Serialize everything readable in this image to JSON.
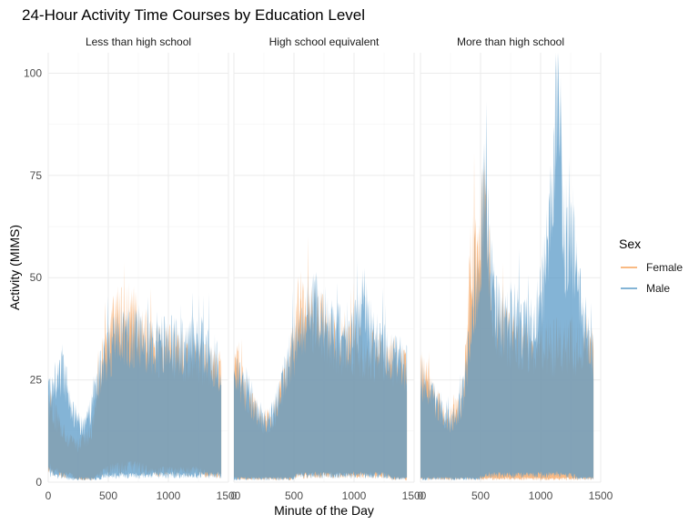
{
  "chart_data": {
    "type": "area",
    "title": "24-Hour Activity Time Courses by Education Level",
    "xlabel": "Minute of the Day",
    "ylabel": "Activity (MIMS)",
    "xlim": [
      0,
      1500
    ],
    "ylim": [
      0,
      105
    ],
    "x_ticks": [
      0,
      500,
      1000,
      1500
    ],
    "y_ticks": [
      0,
      25,
      50,
      75,
      100
    ],
    "grid": true,
    "legend": {
      "title": "Sex",
      "position": "right",
      "entries": [
        {
          "label": "Female",
          "color": "#f7a35c"
        },
        {
          "label": "Male",
          "color": "#5b9bc8"
        }
      ]
    },
    "panels": [
      {
        "label": "Less than high school",
        "series": [
          {
            "name": "Female",
            "x": [
              0,
              60,
              120,
              180,
              240,
              300,
              360,
              420,
              480,
              540,
              600,
              660,
              720,
              780,
              840,
              900,
              960,
              1020,
              1080,
              1140,
              1200,
              1260,
              1320,
              1380,
              1440
            ],
            "upper": [
              20,
              16,
              13,
              10,
              9,
              10,
              12,
              25,
              33,
              38,
              40,
              42,
              40,
              36,
              33,
              32,
              32,
              32,
              31,
              31,
              31,
              30,
              30,
              28,
              26
            ],
            "lower": [
              4,
              3,
              2,
              2,
              1,
              1,
              1,
              2,
              3,
              4,
              4,
              4,
              4,
              4,
              3,
              3,
              3,
              3,
              3,
              3,
              3,
              3,
              2,
              2,
              2
            ]
          },
          {
            "name": "Male",
            "x": [
              0,
              60,
              120,
              180,
              240,
              300,
              360,
              420,
              480,
              540,
              600,
              660,
              720,
              780,
              840,
              900,
              960,
              1020,
              1080,
              1140,
              1200,
              1260,
              1320,
              1380,
              1440
            ],
            "upper": [
              22,
              24,
              27,
              20,
              15,
              13,
              18,
              26,
              31,
              34,
              36,
              35,
              36,
              35,
              33,
              34,
              33,
              34,
              33,
              33,
              35,
              34,
              32,
              30,
              27
            ],
            "lower": [
              3,
              2,
              2,
              1,
              1,
              1,
              1,
              1,
              2,
              2,
              2,
              2,
              2,
              2,
              2,
              2,
              2,
              2,
              2,
              2,
              2,
              2,
              2,
              2,
              2
            ]
          }
        ]
      },
      {
        "label": "High school equivalent",
        "series": [
          {
            "name": "Female",
            "x": [
              0,
              60,
              120,
              180,
              240,
              300,
              360,
              420,
              480,
              540,
              600,
              660,
              720,
              780,
              840,
              900,
              960,
              1020,
              1080,
              1140,
              1200,
              1260,
              1320,
              1380,
              1440
            ],
            "upper": [
              30,
              25,
              20,
              17,
              15,
              15,
              18,
              25,
              32,
              43,
              38,
              40,
              39,
              36,
              34,
              33,
              33,
              32,
              32,
              31,
              31,
              30,
              30,
              29,
              27
            ],
            "lower": [
              1,
              1,
              1,
              1,
              1,
              1,
              1,
              1,
              1,
              2,
              2,
              2,
              2,
              2,
              2,
              2,
              2,
              2,
              2,
              2,
              2,
              2,
              1,
              1,
              1
            ]
          },
          {
            "name": "Male",
            "x": [
              0,
              60,
              120,
              180,
              240,
              300,
              360,
              420,
              480,
              540,
              600,
              660,
              720,
              780,
              840,
              900,
              960,
              1020,
              1080,
              1140,
              1200,
              1260,
              1320,
              1380,
              1440
            ],
            "upper": [
              27,
              24,
              21,
              18,
              16,
              15,
              20,
              25,
              30,
              35,
              40,
              44,
              40,
              39,
              37,
              35,
              36,
              37,
              46,
              35,
              34,
              32,
              31,
              30,
              28
            ],
            "lower": [
              1,
              1,
              1,
              1,
              1,
              1,
              1,
              1,
              1,
              2,
              2,
              2,
              2,
              2,
              2,
              2,
              2,
              2,
              2,
              2,
              2,
              2,
              1,
              1,
              1
            ]
          }
        ]
      },
      {
        "label": "More than high school",
        "series": [
          {
            "name": "Female",
            "x": [
              0,
              60,
              120,
              180,
              240,
              300,
              360,
              420,
              480,
              540,
              600,
              660,
              720,
              780,
              840,
              900,
              960,
              1020,
              1080,
              1140,
              1200,
              1260,
              1320,
              1380,
              1440
            ],
            "upper": [
              27,
              24,
              20,
              17,
              15,
              17,
              22,
              53,
              55,
              70,
              42,
              38,
              36,
              35,
              34,
              33,
              33,
              33,
              33,
              33,
              33,
              34,
              33,
              32,
              31
            ],
            "lower": [
              1,
              1,
              1,
              1,
              1,
              1,
              1,
              1,
              1,
              1,
              1,
              1,
              1,
              1,
              1,
              1,
              1,
              1,
              1,
              1,
              1,
              1,
              1,
              1,
              1
            ]
          },
          {
            "name": "Male",
            "x": [
              0,
              60,
              120,
              180,
              240,
              300,
              360,
              420,
              480,
              540,
              600,
              660,
              720,
              780,
              840,
              900,
              960,
              1020,
              1080,
              1140,
              1200,
              1260,
              1320,
              1380,
              1440
            ],
            "upper": [
              26,
              23,
              20,
              17,
              15,
              16,
              22,
              38,
              50,
              74,
              45,
              40,
              39,
              40,
              38,
              37,
              38,
              48,
              63,
              104,
              55,
              60,
              45,
              38,
              30
            ],
            "lower": [
              1,
              1,
              1,
              1,
              1,
              1,
              1,
              1,
              1,
              2,
              2,
              2,
              2,
              2,
              2,
              2,
              2,
              2,
              2,
              2,
              2,
              2,
              1,
              1,
              1
            ]
          }
        ]
      }
    ]
  }
}
